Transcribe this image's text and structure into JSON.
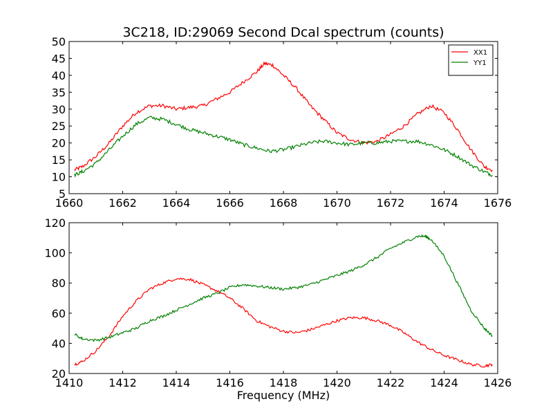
{
  "chart_data": [
    {
      "type": "line",
      "title": "3C218, ID:29069 Second Dcal spectrum (counts)",
      "xlabel": "",
      "ylabel": "",
      "xlim": [
        1660,
        1676
      ],
      "ylim": [
        5,
        50
      ],
      "xticks": [
        1660,
        1662,
        1664,
        1666,
        1668,
        1670,
        1672,
        1674,
        1676
      ],
      "yticks": [
        5,
        10,
        15,
        20,
        25,
        30,
        35,
        40,
        45,
        50
      ],
      "legend_position": "top-right",
      "grid": false,
      "series": [
        {
          "name": "XX1",
          "color": "#ff0000",
          "x": [
            1660.2,
            1660.5,
            1661,
            1661.5,
            1662,
            1662.5,
            1663,
            1663.5,
            1664,
            1664.5,
            1665,
            1665.5,
            1666,
            1666.5,
            1667,
            1667.3,
            1667.6,
            1668,
            1668.5,
            1669,
            1669.5,
            1670,
            1670.5,
            1671,
            1671.5,
            1672,
            1672.5,
            1673,
            1673.5,
            1674,
            1674.5,
            1675,
            1675.5,
            1675.8
          ],
          "values": [
            12,
            13,
            16,
            20,
            25,
            29,
            31,
            31,
            30,
            30.5,
            31,
            33,
            35,
            38,
            41,
            43.5,
            43,
            40,
            36,
            31,
            27,
            23,
            21,
            20,
            20.5,
            22.5,
            25,
            28.5,
            31,
            29,
            24,
            18,
            13,
            12
          ]
        },
        {
          "name": "YY1",
          "color": "#008000",
          "x": [
            1660.2,
            1660.5,
            1661,
            1661.5,
            1662,
            1662.5,
            1663,
            1663.5,
            1664,
            1664.5,
            1665,
            1665.5,
            1666,
            1666.5,
            1667,
            1667.5,
            1668,
            1668.5,
            1669,
            1669.5,
            1670,
            1670.5,
            1671,
            1671.5,
            1672,
            1672.5,
            1673,
            1673.5,
            1674,
            1674.5,
            1675,
            1675.5,
            1675.8
          ],
          "values": [
            10.5,
            11.5,
            14,
            18,
            22,
            25.5,
            27.5,
            27,
            25.5,
            24,
            23,
            22,
            21,
            19.5,
            18.5,
            17.5,
            18,
            19,
            20,
            20.5,
            20,
            19.5,
            20,
            20,
            20.5,
            20.5,
            20.5,
            19.5,
            18,
            16,
            13.5,
            11.5,
            10.5
          ]
        }
      ]
    },
    {
      "type": "line",
      "title": "",
      "xlabel": "Frequency (MHz)",
      "ylabel": "",
      "xlim": [
        1410,
        1426
      ],
      "ylim": [
        20,
        120
      ],
      "xticks": [
        1410,
        1412,
        1414,
        1416,
        1418,
        1420,
        1422,
        1424,
        1426
      ],
      "yticks": [
        20,
        40,
        60,
        80,
        100,
        120
      ],
      "grid": false,
      "series": [
        {
          "color": "#ff0000",
          "x": [
            1410.2,
            1410.5,
            1411,
            1411.5,
            1412,
            1412.5,
            1413,
            1413.5,
            1414,
            1414.5,
            1415,
            1415.5,
            1416,
            1416.5,
            1417,
            1417.5,
            1418,
            1418.5,
            1419,
            1419.5,
            1420,
            1420.5,
            1421,
            1421.5,
            1422,
            1422.5,
            1423,
            1423.5,
            1424,
            1424.5,
            1425,
            1425.5,
            1425.8
          ],
          "values": [
            26,
            28,
            35,
            45,
            58,
            68,
            76,
            80,
            83,
            82.5,
            79,
            75,
            70,
            63,
            55,
            51,
            48,
            47,
            49,
            52,
            55,
            57,
            57,
            55,
            52,
            47,
            41,
            36,
            32,
            29,
            26,
            25,
            26
          ]
        },
        {
          "color": "#008000",
          "x": [
            1410.2,
            1410.5,
            1411,
            1411.5,
            1412,
            1412.5,
            1413,
            1413.5,
            1414,
            1414.5,
            1415,
            1415.5,
            1416,
            1416.5,
            1417,
            1417.5,
            1418,
            1418.5,
            1419,
            1419.5,
            1420,
            1420.5,
            1421,
            1421.5,
            1422,
            1422.5,
            1423,
            1423.3,
            1423.5,
            1424,
            1424.5,
            1425,
            1425.5,
            1425.8
          ],
          "values": [
            46,
            43,
            42,
            44,
            47,
            50,
            55,
            58,
            62,
            66,
            70,
            73,
            77,
            79,
            78,
            77,
            76,
            77,
            79,
            82,
            85,
            88,
            92,
            97,
            103,
            107,
            111,
            111,
            109,
            98,
            80,
            62,
            50,
            45
          ]
        }
      ]
    }
  ]
}
